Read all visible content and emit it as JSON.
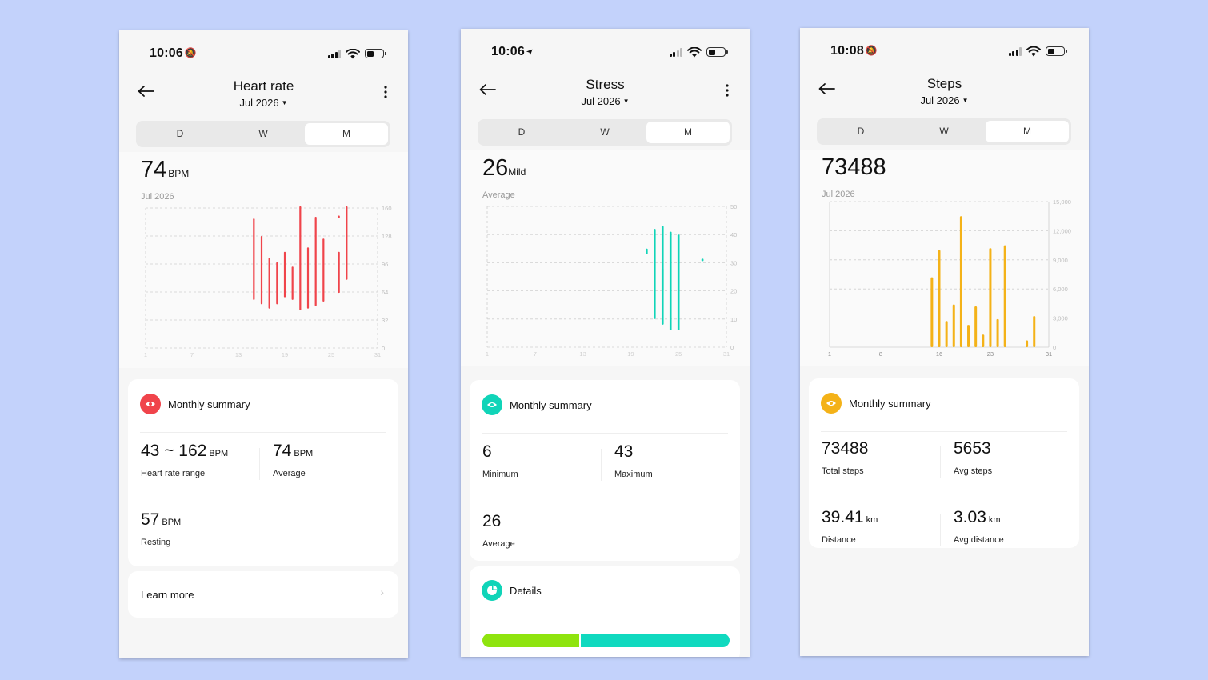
{
  "screens": [
    {
      "id": "heart",
      "status": {
        "time": "10:06",
        "time_glyph": "🔕"
      },
      "header": {
        "title": "Heart rate",
        "subtitle": "Jul 2026"
      },
      "tabs": [
        "D",
        "W",
        "M"
      ],
      "active_tab": "M",
      "headline": {
        "value": "74",
        "unit": "BPM",
        "caption": "Jul 2026"
      },
      "chart_data": {
        "type": "bar",
        "title": "",
        "x": [
          1,
          7,
          13,
          19,
          25,
          31
        ],
        "x_tick_labels": [
          "1",
          "7",
          "13",
          "19",
          "25",
          "31"
        ],
        "y_tick_labels": [
          "160",
          "128",
          "96",
          "64",
          "32",
          "0"
        ],
        "ylim": [
          0,
          160
        ],
        "grid": true,
        "color": "#f0444b",
        "ranges": [
          {
            "day": 15,
            "min": 55,
            "max": 148
          },
          {
            "day": 16,
            "min": 50,
            "max": 128
          },
          {
            "day": 17,
            "min": 45,
            "max": 103
          },
          {
            "day": 18,
            "min": 50,
            "max": 98
          },
          {
            "day": 19,
            "min": 58,
            "max": 110
          },
          {
            "day": 20,
            "min": 55,
            "max": 93
          },
          {
            "day": 21,
            "min": 43,
            "max": 162
          },
          {
            "day": 22,
            "min": 45,
            "max": 115
          },
          {
            "day": 23,
            "min": 48,
            "max": 150
          },
          {
            "day": 24,
            "min": 53,
            "max": 125
          },
          {
            "day": 26,
            "min": 63,
            "max": 110
          },
          {
            "day": 26,
            "point": 150
          },
          {
            "day": 27,
            "min": 78,
            "max": 162
          }
        ]
      },
      "summary": {
        "title": "Monthly summary",
        "stats": [
          {
            "value": "43 ~ 162",
            "unit": "BPM",
            "label": "Heart rate range"
          },
          {
            "value": "74",
            "unit": "BPM",
            "label": "Average"
          },
          {
            "value": "57",
            "unit": "BPM",
            "label": "Resting"
          }
        ]
      },
      "learn_more": "Learn more",
      "accent": "#f0444b"
    },
    {
      "id": "stress",
      "status": {
        "time": "10:06",
        "time_glyph": "➤"
      },
      "header": {
        "title": "Stress",
        "subtitle": "Jul 2026"
      },
      "tabs": [
        "D",
        "W",
        "M"
      ],
      "active_tab": "M",
      "headline": {
        "value": "26",
        "unit": "Mild",
        "caption": "Average"
      },
      "chart_data": {
        "type": "bar",
        "title": "",
        "x": [
          1,
          7,
          13,
          19,
          25,
          31
        ],
        "x_tick_labels": [
          "1",
          "7",
          "13",
          "19",
          "25",
          "31"
        ],
        "y_tick_labels": [
          "50",
          "40",
          "30",
          "20",
          "10",
          "0"
        ],
        "ylim": [
          0,
          50
        ],
        "grid": true,
        "color": "#10d4b8",
        "ranges": [
          {
            "day": 21,
            "min": 33,
            "max": 35
          },
          {
            "day": 22,
            "min": 10,
            "max": 42
          },
          {
            "day": 23,
            "min": 8,
            "max": 43
          },
          {
            "day": 23,
            "min": 20,
            "max": 28
          },
          {
            "day": 24,
            "min": 6,
            "max": 41
          },
          {
            "day": 25,
            "min": 6,
            "max": 40
          },
          {
            "day": 28,
            "point": 31
          }
        ]
      },
      "summary": {
        "title": "Monthly summary",
        "stats": [
          {
            "value": "6",
            "unit": "",
            "label": "Minimum"
          },
          {
            "value": "43",
            "unit": "",
            "label": "Maximum"
          },
          {
            "value": "26",
            "unit": "",
            "label": "Average"
          }
        ]
      },
      "details": {
        "title": "Details",
        "distribution": [
          0.39,
          0.61
        ],
        "colors": [
          "#8fe40e",
          "#10d9bf"
        ]
      },
      "accent": "#10d4b8"
    },
    {
      "id": "steps",
      "status": {
        "time": "10:08",
        "time_glyph": "🔕"
      },
      "header": {
        "title": "Steps",
        "subtitle": "Jul 2026"
      },
      "tabs": [
        "D",
        "W",
        "M"
      ],
      "active_tab": "M",
      "headline": {
        "value": "73488",
        "unit": "",
        "caption": "Jul 2026"
      },
      "chart_data": {
        "type": "bar",
        "title": "",
        "x": [
          1,
          8,
          16,
          23,
          31
        ],
        "x_tick_labels": [
          "1",
          "8",
          "16",
          "23",
          "31"
        ],
        "y_tick_labels": [
          "15,000",
          "12,000",
          "9,000",
          "6,000",
          "3,000",
          "0"
        ],
        "ylim": [
          0,
          15000
        ],
        "grid": true,
        "color": "#f4b218",
        "values": [
          {
            "day": 15,
            "value": 7200
          },
          {
            "day": 16,
            "value": 10000
          },
          {
            "day": 17,
            "value": 2700
          },
          {
            "day": 18,
            "value": 4400
          },
          {
            "day": 19,
            "value": 13500
          },
          {
            "day": 20,
            "value": 2300
          },
          {
            "day": 21,
            "value": 4200
          },
          {
            "day": 22,
            "value": 1300
          },
          {
            "day": 23,
            "value": 10200
          },
          {
            "day": 24,
            "value": 2900
          },
          {
            "day": 25,
            "value": 10500
          },
          {
            "day": 28,
            "value": 700
          },
          {
            "day": 29,
            "value": 3200
          }
        ]
      },
      "summary": {
        "title": "Monthly summary",
        "stats": [
          {
            "value": "73488",
            "unit": "",
            "label": "Total steps"
          },
          {
            "value": "5653",
            "unit": "",
            "label": "Avg steps"
          },
          {
            "value": "39.41",
            "unit": "km",
            "label": "Distance"
          },
          {
            "value": "3.03",
            "unit": "km",
            "label": "Avg distance"
          }
        ]
      },
      "accent": "#f4b218"
    }
  ]
}
